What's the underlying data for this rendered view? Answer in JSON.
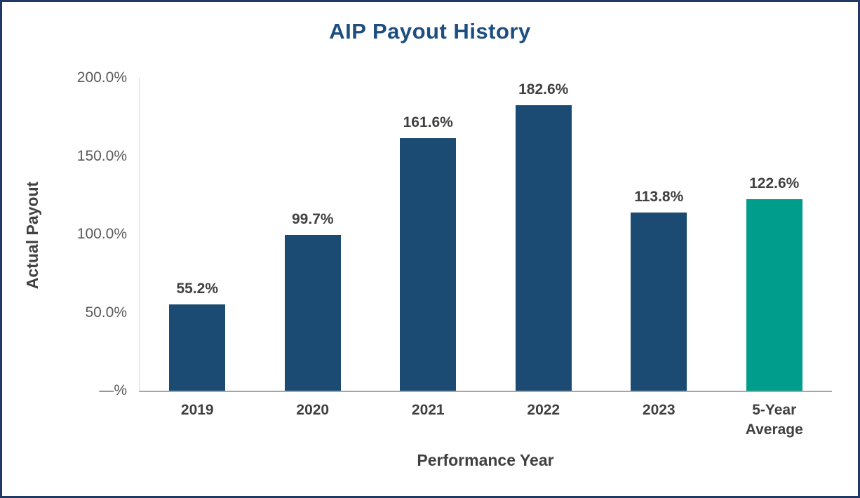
{
  "frame": {
    "border_color": "#203864",
    "background": "#FFFFFF"
  },
  "styles": {
    "title_color": "#1C4E80",
    "data_label_color": "#404040",
    "tick_label_color": "#595959",
    "axis_line_color": "#A6A6A6",
    "bar_color": "#1B4B73",
    "highlight_bar_color": "#009C8C"
  },
  "chart_data": {
    "type": "bar",
    "title": "AIP Payout History",
    "xlabel": "Performance Year",
    "ylabel": "Actual Payout",
    "categories": [
      "2019",
      "2020",
      "2021",
      "2022",
      "2023",
      "5-Year\nAverage"
    ],
    "values": [
      55.2,
      99.7,
      161.6,
      182.6,
      113.8,
      122.6
    ],
    "value_labels": [
      "55.2%",
      "99.7%",
      "161.6%",
      "182.6%",
      "113.8%",
      "122.6%"
    ],
    "bar_colors": [
      "#1B4B73",
      "#1B4B73",
      "#1B4B73",
      "#1B4B73",
      "#1B4B73",
      "#009C8C"
    ],
    "ylim": [
      0,
      200
    ],
    "yticks": [
      {
        "value": 0,
        "label": "—%"
      },
      {
        "value": 50,
        "label": "50.0%"
      },
      {
        "value": 100,
        "label": "100.0%"
      },
      {
        "value": 150,
        "label": "150.0%"
      },
      {
        "value": 200,
        "label": "200.0%"
      }
    ],
    "grid": false,
    "legend": false
  }
}
